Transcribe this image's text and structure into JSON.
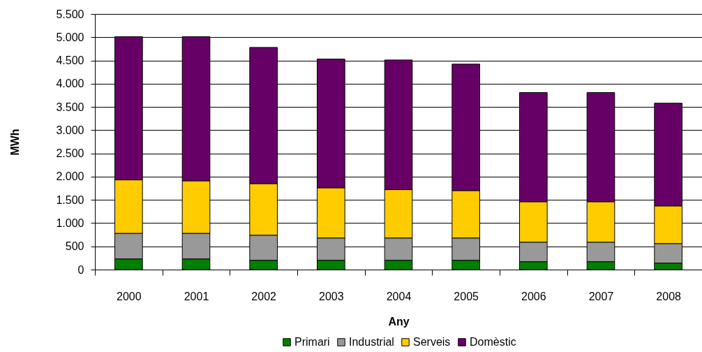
{
  "chart_data": {
    "type": "bar",
    "stacked": true,
    "xlabel": "Any",
    "ylabel": "MWh",
    "categories": [
      "2000",
      "2001",
      "2002",
      "2003",
      "2004",
      "2005",
      "2006",
      "2007",
      "2008"
    ],
    "series": [
      {
        "name": "Primari",
        "color": "#008000",
        "values": [
          230,
          230,
          200,
          200,
          200,
          200,
          170,
          170,
          140
        ]
      },
      {
        "name": "Industrial",
        "color": "#999999",
        "values": [
          550,
          550,
          540,
          480,
          480,
          480,
          420,
          420,
          420
        ]
      },
      {
        "name": "Serveis",
        "color": "#ffcc00",
        "values": [
          1150,
          1130,
          1110,
          1080,
          1040,
          1020,
          870,
          870,
          810
        ]
      },
      {
        "name": "Domèstic",
        "color": "#660066",
        "values": [
          3080,
          3100,
          2930,
          2770,
          2790,
          2720,
          2350,
          2350,
          2210
        ]
      }
    ],
    "ylim": [
      0,
      5500
    ],
    "yticks": [
      0,
      500,
      {
        "value": 1000,
        "label": "1.000"
      },
      {
        "value": 1500,
        "label": "1.500"
      },
      {
        "value": 2000,
        "label": "2.000"
      },
      {
        "value": 2500,
        "label": "2.500"
      },
      {
        "value": 3000,
        "label": "3.000"
      },
      {
        "value": 3500,
        "label": "3.500"
      },
      {
        "value": 4000,
        "label": "4.000"
      },
      {
        "value": 4500,
        "label": "4.500"
      },
      {
        "value": 5000,
        "label": "5.000"
      },
      {
        "value": 5500,
        "label": "5.500"
      }
    ],
    "grid": "y",
    "legend": "bottom"
  }
}
